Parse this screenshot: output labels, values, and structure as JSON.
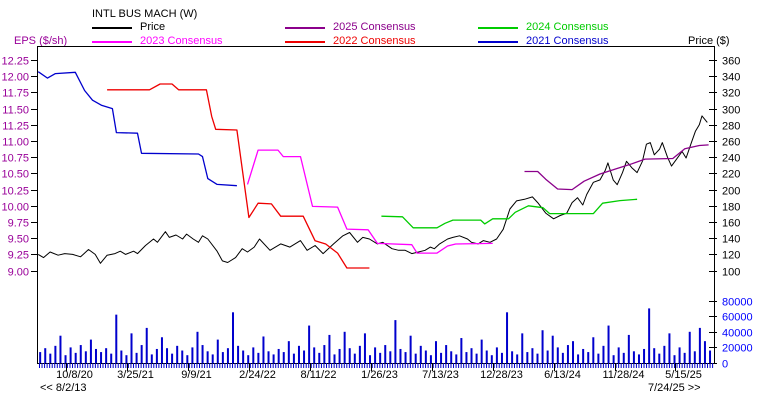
{
  "header": {
    "title": "INTL BUS MACH (W)",
    "left_axis_label": "EPS ($/sh)",
    "right_axis_label": "Price ($)"
  },
  "legend": [
    {
      "label": "Price",
      "color": "#000000"
    },
    {
      "label": "2025 Consensus",
      "color": "#8B008B"
    },
    {
      "label": "2024 Consensus",
      "color": "#00CC00"
    },
    {
      "label": "2023 Consensus",
      "color": "#FF00FF"
    },
    {
      "label": "2022 Consensus",
      "color": "#EE0000"
    },
    {
      "label": "2021 Consensus",
      "color": "#0000CD"
    }
  ],
  "chart_data": {
    "type": "line",
    "x_unit": "decimal_year",
    "eps_axis": {
      "min": 9.0,
      "max": 12.25,
      "step": 0.25,
      "color": "#990099",
      "label": "EPS ($/sh)"
    },
    "price_axis": {
      "min": 100,
      "max": 360,
      "step": 20,
      "color": "#000000",
      "label": "Price ($)"
    },
    "volume_axis": {
      "min": 0,
      "max": 80000,
      "step": 20000,
      "color": "#0000FF"
    },
    "date_ticks": [
      {
        "label": "10/8/20",
        "year": 2020.77
      },
      {
        "label": "3/25/21",
        "year": 2021.23
      },
      {
        "label": "9/9/21",
        "year": 2021.69
      },
      {
        "label": "2/24/22",
        "year": 2022.15
      },
      {
        "label": "8/11/22",
        "year": 2022.61
      },
      {
        "label": "1/26/23",
        "year": 2023.07
      },
      {
        "label": "7/13/23",
        "year": 2023.53
      },
      {
        "label": "12/28/23",
        "year": 2023.99
      },
      {
        "label": "6/13/24",
        "year": 2024.45
      },
      {
        "label": "11/28/24",
        "year": 2024.91
      },
      {
        "label": "5/15/25",
        "year": 2025.37
      }
    ],
    "nav": {
      "back": "<< 8/2/13",
      "forward": "7/24/25 >>"
    },
    "series": [
      {
        "name": "Price",
        "axis": "price",
        "color": "#000000",
        "width": 1,
        "points": [
          [
            2020.56,
            120
          ],
          [
            2020.6,
            116
          ],
          [
            2020.65,
            123
          ],
          [
            2020.71,
            119
          ],
          [
            2020.76,
            121
          ],
          [
            2020.82,
            120
          ],
          [
            2020.88,
            117
          ],
          [
            2020.94,
            126
          ],
          [
            2020.99,
            120
          ],
          [
            2021.03,
            109
          ],
          [
            2021.08,
            119
          ],
          [
            2021.14,
            121
          ],
          [
            2021.18,
            124
          ],
          [
            2021.22,
            120
          ],
          [
            2021.28,
            124
          ],
          [
            2021.31,
            121
          ],
          [
            2021.37,
            131
          ],
          [
            2021.43,
            139
          ],
          [
            2021.46,
            135
          ],
          [
            2021.52,
            148
          ],
          [
            2021.55,
            141
          ],
          [
            2021.6,
            144
          ],
          [
            2021.65,
            139
          ],
          [
            2021.68,
            145
          ],
          [
            2021.73,
            139
          ],
          [
            2021.77,
            135
          ],
          [
            2021.8,
            143
          ],
          [
            2021.84,
            139
          ],
          [
            2021.91,
            124
          ],
          [
            2021.95,
            112
          ],
          [
            2021.99,
            110
          ],
          [
            2022.05,
            116
          ],
          [
            2022.1,
            127
          ],
          [
            2022.14,
            123
          ],
          [
            2022.19,
            129
          ],
          [
            2022.23,
            139
          ],
          [
            2022.31,
            125
          ],
          [
            2022.39,
            133
          ],
          [
            2022.46,
            129
          ],
          [
            2022.54,
            137
          ],
          [
            2022.59,
            125
          ],
          [
            2022.65,
            131
          ],
          [
            2022.71,
            121
          ],
          [
            2022.79,
            133
          ],
          [
            2022.86,
            143
          ],
          [
            2022.91,
            147
          ],
          [
            2022.97,
            135
          ],
          [
            2023.01,
            141
          ],
          [
            2023.06,
            139
          ],
          [
            2023.12,
            133
          ],
          [
            2023.16,
            135
          ],
          [
            2023.23,
            127
          ],
          [
            2023.28,
            125
          ],
          [
            2023.33,
            125
          ],
          [
            2023.38,
            121
          ],
          [
            2023.43,
            123
          ],
          [
            2023.48,
            125
          ],
          [
            2023.52,
            129
          ],
          [
            2023.55,
            127
          ],
          [
            2023.59,
            133
          ],
          [
            2023.65,
            139
          ],
          [
            2023.69,
            141
          ],
          [
            2023.74,
            143
          ],
          [
            2023.8,
            139
          ],
          [
            2023.83,
            135
          ],
          [
            2023.88,
            133
          ],
          [
            2023.92,
            137
          ],
          [
            2023.97,
            135
          ],
          [
            2024.02,
            139
          ],
          [
            2024.07,
            151
          ],
          [
            2024.12,
            176
          ],
          [
            2024.17,
            186
          ],
          [
            2024.23,
            188
          ],
          [
            2024.29,
            191
          ],
          [
            2024.33,
            184
          ],
          [
            2024.39,
            171
          ],
          [
            2024.45,
            164
          ],
          [
            2024.5,
            168
          ],
          [
            2024.55,
            171
          ],
          [
            2024.59,
            184
          ],
          [
            2024.63,
            190
          ],
          [
            2024.67,
            181
          ],
          [
            2024.7,
            194
          ],
          [
            2024.75,
            209
          ],
          [
            2024.8,
            212
          ],
          [
            2024.84,
            224
          ],
          [
            2024.86,
            233
          ],
          [
            2024.9,
            212
          ],
          [
            2024.93,
            206
          ],
          [
            2024.97,
            221
          ],
          [
            2025.0,
            235
          ],
          [
            2025.04,
            227
          ],
          [
            2025.08,
            221
          ],
          [
            2025.12,
            235
          ],
          [
            2025.15,
            256
          ],
          [
            2025.18,
            258
          ],
          [
            2025.21,
            243
          ],
          [
            2025.25,
            250
          ],
          [
            2025.27,
            258
          ],
          [
            2025.31,
            240
          ],
          [
            2025.34,
            229
          ],
          [
            2025.38,
            238
          ],
          [
            2025.42,
            247
          ],
          [
            2025.45,
            239
          ],
          [
            2025.49,
            258
          ],
          [
            2025.52,
            272
          ],
          [
            2025.55,
            280
          ],
          [
            2025.57,
            291
          ],
          [
            2025.61,
            283
          ]
        ]
      },
      {
        "name": "2025 Consensus",
        "axis": "eps",
        "color": "#8B008B",
        "width": 1.3,
        "points": [
          [
            2024.23,
            10.53
          ],
          [
            2024.33,
            10.53
          ],
          [
            2024.39,
            10.41
          ],
          [
            2024.48,
            10.26
          ],
          [
            2024.59,
            10.25
          ],
          [
            2024.68,
            10.38
          ],
          [
            2024.8,
            10.49
          ],
          [
            2024.92,
            10.57
          ],
          [
            2025.03,
            10.64
          ],
          [
            2025.14,
            10.72
          ],
          [
            2025.35,
            10.73
          ],
          [
            2025.44,
            10.88
          ],
          [
            2025.55,
            10.93
          ],
          [
            2025.62,
            10.94
          ]
        ]
      },
      {
        "name": "2024 Consensus",
        "axis": "eps",
        "color": "#00CC00",
        "width": 1.3,
        "points": [
          [
            2023.15,
            9.84
          ],
          [
            2023.31,
            9.83
          ],
          [
            2023.39,
            9.66
          ],
          [
            2023.57,
            9.66
          ],
          [
            2023.63,
            9.73
          ],
          [
            2023.69,
            9.78
          ],
          [
            2023.9,
            9.78
          ],
          [
            2023.93,
            9.72
          ],
          [
            2023.99,
            9.8
          ],
          [
            2024.11,
            9.8
          ],
          [
            2024.16,
            9.9
          ],
          [
            2024.26,
            10.0
          ],
          [
            2024.37,
            9.97
          ],
          [
            2024.42,
            9.88
          ],
          [
            2024.75,
            9.88
          ],
          [
            2024.82,
            10.04
          ],
          [
            2024.95,
            10.08
          ],
          [
            2025.08,
            10.1
          ]
        ]
      },
      {
        "name": "2023 Consensus",
        "axis": "eps",
        "color": "#FF00FF",
        "width": 1.3,
        "points": [
          [
            2022.14,
            10.33
          ],
          [
            2022.22,
            10.86
          ],
          [
            2022.37,
            10.86
          ],
          [
            2022.41,
            10.76
          ],
          [
            2022.54,
            10.76
          ],
          [
            2022.63,
            9.99
          ],
          [
            2022.82,
            9.98
          ],
          [
            2022.89,
            9.64
          ],
          [
            2023.05,
            9.63
          ],
          [
            2023.12,
            9.42
          ],
          [
            2023.38,
            9.4
          ],
          [
            2023.42,
            9.27
          ],
          [
            2023.57,
            9.27
          ],
          [
            2023.65,
            9.38
          ],
          [
            2023.71,
            9.41
          ],
          [
            2023.99,
            9.42
          ]
        ]
      },
      {
        "name": "2022 Consensus",
        "axis": "eps",
        "color": "#EE0000",
        "width": 1.3,
        "points": [
          [
            2021.08,
            11.79
          ],
          [
            2021.4,
            11.79
          ],
          [
            2021.48,
            11.88
          ],
          [
            2021.57,
            11.88
          ],
          [
            2021.62,
            11.79
          ],
          [
            2021.83,
            11.79
          ],
          [
            2021.87,
            11.38
          ],
          [
            2021.9,
            11.18
          ],
          [
            2022.06,
            11.17
          ],
          [
            2022.15,
            9.82
          ],
          [
            2022.22,
            10.04
          ],
          [
            2022.32,
            10.03
          ],
          [
            2022.39,
            9.84
          ],
          [
            2022.56,
            9.84
          ],
          [
            2022.65,
            9.46
          ],
          [
            2022.73,
            9.41
          ],
          [
            2022.82,
            9.27
          ],
          [
            2022.89,
            9.04
          ],
          [
            2023.06,
            9.04
          ]
        ]
      },
      {
        "name": "2021 Consensus",
        "axis": "eps",
        "color": "#0000CD",
        "width": 1.3,
        "points": [
          [
            2020.56,
            12.07
          ],
          [
            2020.63,
            11.97
          ],
          [
            2020.69,
            12.04
          ],
          [
            2020.84,
            12.06
          ],
          [
            2020.91,
            11.78
          ],
          [
            2020.97,
            11.63
          ],
          [
            2021.04,
            11.55
          ],
          [
            2021.12,
            11.5
          ],
          [
            2021.15,
            11.13
          ],
          [
            2021.31,
            11.12
          ],
          [
            2021.34,
            10.81
          ],
          [
            2021.77,
            10.8
          ],
          [
            2021.8,
            10.76
          ],
          [
            2021.84,
            10.42
          ],
          [
            2021.91,
            10.33
          ],
          [
            2022.06,
            10.31
          ]
        ]
      }
    ],
    "volume": {
      "color": "#0000CD",
      "start_year": 2020.575,
      "step_years": 0.0383,
      "values": [
        14000,
        19000,
        12000,
        22000,
        35000,
        10000,
        20000,
        13000,
        23000,
        15000,
        30000,
        18000,
        14000,
        19000,
        12000,
        62000,
        16000,
        10000,
        38000,
        13000,
        23000,
        45000,
        11000,
        18000,
        33000,
        19000,
        12000,
        22000,
        16000,
        10000,
        20000,
        40000,
        23000,
        15000,
        11000,
        30000,
        14000,
        19000,
        65000,
        22000,
        16000,
        10000,
        20000,
        13000,
        34000,
        15000,
        11000,
        18000,
        14000,
        28000,
        12000,
        22000,
        16000,
        48000,
        20000,
        13000,
        23000,
        36000,
        11000,
        18000,
        40000,
        19000,
        12000,
        22000,
        38000,
        10000,
        20000,
        13000,
        23000,
        15000,
        55000,
        18000,
        14000,
        35000,
        12000,
        22000,
        16000,
        10000,
        28000,
        13000,
        23000,
        15000,
        11000,
        32000,
        14000,
        19000,
        12000,
        30000,
        16000,
        10000,
        20000,
        13000,
        65000,
        15000,
        11000,
        38000,
        14000,
        19000,
        12000,
        42000,
        16000,
        35000,
        20000,
        13000,
        23000,
        28000,
        11000,
        18000,
        14000,
        33000,
        12000,
        22000,
        48000,
        10000,
        20000,
        13000,
        36000,
        15000,
        11000,
        18000,
        70000,
        19000,
        12000,
        22000,
        38000,
        10000,
        20000,
        13000,
        40000,
        15000,
        45000,
        28000,
        16000
      ]
    }
  }
}
